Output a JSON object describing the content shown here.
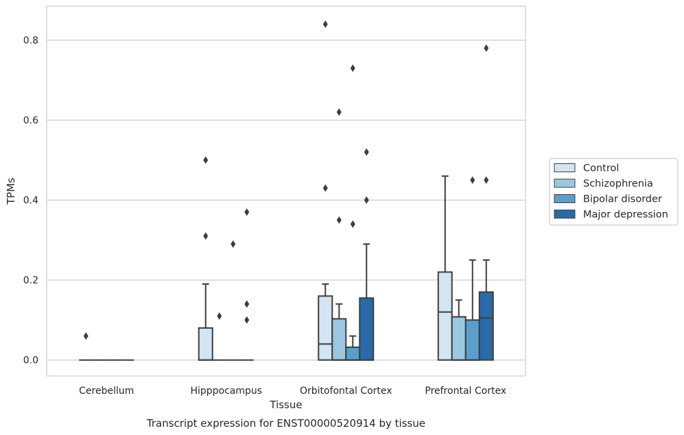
{
  "chart_data": {
    "type": "boxplot",
    "title": "",
    "caption": "Transcript expression for ENST00000520914 by tissue",
    "xlabel": "Tissue",
    "ylabel": "TPMs",
    "ylim": [
      -0.04,
      0.885
    ],
    "yticks": [
      0.0,
      0.2,
      0.4,
      0.6,
      0.8
    ],
    "ytick_labels": [
      "0.0",
      "0.2",
      "0.4",
      "0.6",
      "0.8"
    ],
    "grid": "horizontal",
    "legend_position": "right",
    "categories": [
      "Cerebellum",
      "Hipppocampus",
      "Orbitofontal Cortex",
      "Prefrontal Cortex"
    ],
    "series": [
      {
        "name": "Control",
        "color": "#d3e4f3",
        "boxes": [
          {
            "q1": 0.0,
            "median": 0.0,
            "q3": 0.0,
            "whislo": 0.0,
            "whishi": 0.0,
            "fliers": [
              0.06
            ]
          },
          {
            "q1": 0.0,
            "median": 0.0,
            "q3": 0.08,
            "whislo": 0.0,
            "whishi": 0.19,
            "fliers": [
              0.31,
              0.5
            ]
          },
          {
            "q1": 0.0,
            "median": 0.04,
            "q3": 0.16,
            "whislo": 0.0,
            "whishi": 0.19,
            "fliers": [
              0.43,
              0.84
            ]
          },
          {
            "q1": 0.0,
            "median": 0.12,
            "q3": 0.22,
            "whislo": 0.0,
            "whishi": 0.46,
            "fliers": []
          }
        ]
      },
      {
        "name": "Schizophrenia",
        "color": "#9ac8e0",
        "boxes": [
          {
            "q1": 0.0,
            "median": 0.0,
            "q3": 0.0,
            "whislo": 0.0,
            "whishi": 0.0,
            "fliers": []
          },
          {
            "q1": 0.0,
            "median": 0.0,
            "q3": 0.0,
            "whislo": 0.0,
            "whishi": 0.0,
            "fliers": [
              0.11
            ]
          },
          {
            "q1": 0.0,
            "median": 0.0,
            "q3": 0.103,
            "whislo": 0.0,
            "whishi": 0.14,
            "fliers": [
              0.35,
              0.62
            ]
          },
          {
            "q1": 0.0,
            "median": 0.0,
            "q3": 0.108,
            "whislo": 0.0,
            "whishi": 0.15,
            "fliers": []
          }
        ]
      },
      {
        "name": "Bipolar disorder",
        "color": "#5a9fcb",
        "boxes": [
          {
            "q1": 0.0,
            "median": 0.0,
            "q3": 0.0,
            "whislo": 0.0,
            "whishi": 0.0,
            "fliers": []
          },
          {
            "q1": 0.0,
            "median": 0.0,
            "q3": 0.0,
            "whislo": 0.0,
            "whishi": 0.0,
            "fliers": [
              0.29
            ]
          },
          {
            "q1": 0.0,
            "median": 0.0,
            "q3": 0.032,
            "whislo": 0.0,
            "whishi": 0.06,
            "fliers": [
              0.34,
              0.73
            ]
          },
          {
            "q1": 0.0,
            "median": 0.0,
            "q3": 0.1,
            "whislo": 0.0,
            "whishi": 0.25,
            "fliers": [
              0.45
            ]
          }
        ]
      },
      {
        "name": "Major depression",
        "color": "#2a6aa8",
        "boxes": [
          {
            "q1": 0.0,
            "median": 0.0,
            "q3": 0.0,
            "whislo": 0.0,
            "whishi": 0.0,
            "fliers": []
          },
          {
            "q1": 0.0,
            "median": 0.0,
            "q3": 0.0,
            "whislo": 0.0,
            "whishi": 0.0,
            "fliers": [
              0.1,
              0.14,
              0.37
            ]
          },
          {
            "q1": 0.0,
            "median": 0.0,
            "q3": 0.155,
            "whislo": 0.0,
            "whishi": 0.29,
            "fliers": [
              0.4,
              0.52
            ]
          },
          {
            "q1": 0.0,
            "median": 0.105,
            "q3": 0.17,
            "whislo": 0.0,
            "whishi": 0.25,
            "fliers": [
              0.45,
              0.78
            ]
          }
        ]
      }
    ]
  }
}
